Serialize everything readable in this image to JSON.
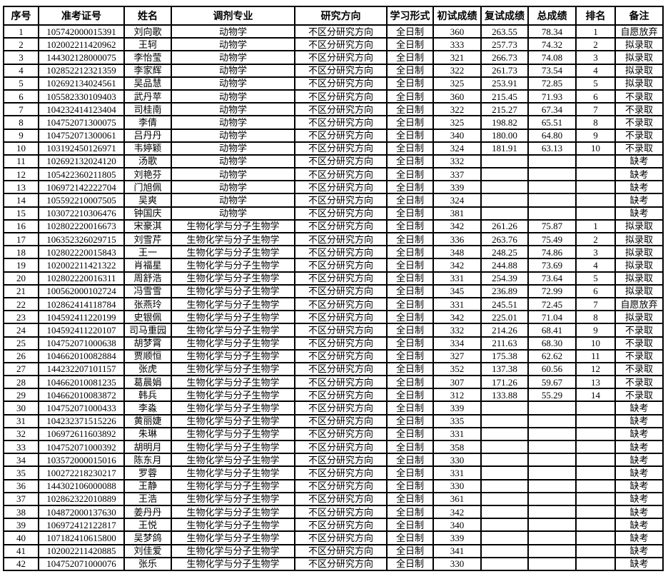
{
  "headers": [
    "序号",
    "准考证号",
    "姓名",
    "调剂专业",
    "研究方向",
    "学习形式",
    "初试成绩",
    "复试成绩",
    "总成绩",
    "排名",
    "备注"
  ],
  "rows": [
    [
      "1",
      "105742000015391",
      "刘向歌",
      "动物学",
      "不区分研究方向",
      "全日制",
      "360",
      "263.55",
      "78.34",
      "1",
      "自愿放弃"
    ],
    [
      "2",
      "102002211420962",
      "王轲",
      "动物学",
      "不区分研究方向",
      "全日制",
      "333",
      "257.73",
      "74.32",
      "2",
      "拟录取"
    ],
    [
      "3",
      "144302128000075",
      "李怡莹",
      "动物学",
      "不区分研究方向",
      "全日制",
      "321",
      "266.73",
      "74.08",
      "3",
      "拟录取"
    ],
    [
      "4",
      "102852212321359",
      "李家辉",
      "动物学",
      "不区分研究方向",
      "全日制",
      "322",
      "261.73",
      "73.54",
      "4",
      "拟录取"
    ],
    [
      "5",
      "102692134024561",
      "吴品慧",
      "动物学",
      "不区分研究方向",
      "全日制",
      "325",
      "253.91",
      "72.85",
      "5",
      "拟录取"
    ],
    [
      "6",
      "105582330109403",
      "武丹苹",
      "动物学",
      "不区分研究方向",
      "全日制",
      "360",
      "215.45",
      "71.93",
      "6",
      "不录取"
    ],
    [
      "7",
      "104232414123404",
      "司桂南",
      "动物学",
      "不区分研究方向",
      "全日制",
      "322",
      "215.27",
      "67.34",
      "7",
      "不录取"
    ],
    [
      "8",
      "104752071300075",
      "李倩",
      "动物学",
      "不区分研究方向",
      "全日制",
      "325",
      "198.82",
      "65.51",
      "8",
      "不录取"
    ],
    [
      "9",
      "104752071300061",
      "吕丹丹",
      "动物学",
      "不区分研究方向",
      "全日制",
      "340",
      "180.00",
      "64.80",
      "9",
      "不录取"
    ],
    [
      "10",
      "103192450126971",
      "韦婷颖",
      "动物学",
      "不区分研究方向",
      "全日制",
      "324",
      "181.91",
      "63.13",
      "10",
      "不录取"
    ],
    [
      "11",
      "102692132024120",
      "汤歌",
      "动物学",
      "不区分研究方向",
      "全日制",
      "332",
      "",
      "",
      "",
      "缺考"
    ],
    [
      "12",
      "105422360211805",
      "刘艳芬",
      "动物学",
      "不区分研究方向",
      "全日制",
      "337",
      "",
      "",
      "",
      "缺考"
    ],
    [
      "13",
      "106972142222704",
      "门旭佩",
      "动物学",
      "不区分研究方向",
      "全日制",
      "339",
      "",
      "",
      "",
      "缺考"
    ],
    [
      "14",
      "105592210007505",
      "吴爽",
      "动物学",
      "不区分研究方向",
      "全日制",
      "324",
      "",
      "",
      "",
      "缺考"
    ],
    [
      "15",
      "103072210306476",
      "钟国庆",
      "动物学",
      "不区分研究方向",
      "全日制",
      "381",
      "",
      "",
      "",
      "缺考"
    ],
    [
      "16",
      "102802220016673",
      "宋豪淇",
      "生物化学与分子生物学",
      "不区分研究方向",
      "全日制",
      "342",
      "261.26",
      "75.87",
      "1",
      "拟录取"
    ],
    [
      "17",
      "106352326029715",
      "刘雪芹",
      "生物化学与分子生物学",
      "不区分研究方向",
      "全日制",
      "336",
      "263.76",
      "75.49",
      "2",
      "拟录取"
    ],
    [
      "18",
      "102802220015843",
      "王一",
      "生物化学与分子生物学",
      "不区分研究方向",
      "全日制",
      "348",
      "248.25",
      "74.86",
      "3",
      "拟录取"
    ],
    [
      "19",
      "102002211421322",
      "肖福星",
      "生物化学与分子生物学",
      "不区分研究方向",
      "全日制",
      "342",
      "244.88",
      "73.69",
      "4",
      "拟录取"
    ],
    [
      "20",
      "102802220016311",
      "周舒浩",
      "生物化学与分子生物学",
      "不区分研究方向",
      "全日制",
      "331",
      "254.39",
      "73.64",
      "5",
      "拟录取"
    ],
    [
      "21",
      "100562000102724",
      "冯雪雪",
      "生物化学与分子生物学",
      "不区分研究方向",
      "全日制",
      "345",
      "236.89",
      "72.99",
      "6",
      "拟录取"
    ],
    [
      "22",
      "102862414118784",
      "张燕玲",
      "生物化学与分子生物学",
      "不区分研究方向",
      "全日制",
      "331",
      "245.51",
      "72.45",
      "7",
      "自愿放弃"
    ],
    [
      "23",
      "104592411220199",
      "史银佩",
      "生物化学与分子生物学",
      "不区分研究方向",
      "全日制",
      "342",
      "225.01",
      "71.04",
      "8",
      "拟录取"
    ],
    [
      "24",
      "104592411220107",
      "司马重园",
      "生物化学与分子生物学",
      "不区分研究方向",
      "全日制",
      "332",
      "214.26",
      "68.41",
      "9",
      "不录取"
    ],
    [
      "25",
      "104752071000638",
      "胡梦霄",
      "生物化学与分子生物学",
      "不区分研究方向",
      "全日制",
      "334",
      "211.63",
      "68.30",
      "10",
      "不录取"
    ],
    [
      "26",
      "104662010082884",
      "贾顺恒",
      "生物化学与分子生物学",
      "不区分研究方向",
      "全日制",
      "327",
      "175.38",
      "62.62",
      "11",
      "不录取"
    ],
    [
      "27",
      "144232207101157",
      "张虎",
      "生物化学与分子生物学",
      "不区分研究方向",
      "全日制",
      "352",
      "137.38",
      "60.56",
      "12",
      "不录取"
    ],
    [
      "28",
      "104662010081235",
      "葛晨娟",
      "生物化学与分子生物学",
      "不区分研究方向",
      "全日制",
      "307",
      "171.26",
      "59.67",
      "13",
      "不录取"
    ],
    [
      "29",
      "104662010083872",
      "韩兵",
      "生物化学与分子生物学",
      "不区分研究方向",
      "全日制",
      "312",
      "133.88",
      "55.29",
      "14",
      "不录取"
    ],
    [
      "30",
      "104752071000433",
      "李淼",
      "生物化学与分子生物学",
      "不区分研究方向",
      "全日制",
      "339",
      "",
      "",
      "",
      "缺考"
    ],
    [
      "31",
      "104232371515226",
      "黄丽婕",
      "生物化学与分子生物学",
      "不区分研究方向",
      "全日制",
      "335",
      "",
      "",
      "",
      "缺考"
    ],
    [
      "32",
      "106972611603892",
      "朱琳",
      "生物化学与分子生物学",
      "不区分研究方向",
      "全日制",
      "331",
      "",
      "",
      "",
      "缺考"
    ],
    [
      "33",
      "104752071000392",
      "胡明月",
      "生物化学与分子生物学",
      "不区分研究方向",
      "全日制",
      "358",
      "",
      "",
      "",
      "缺考"
    ],
    [
      "34",
      "103572000015016",
      "陈东月",
      "生物化学与分子生物学",
      "不区分研究方向",
      "全日制",
      "330",
      "",
      "",
      "",
      "缺考"
    ],
    [
      "35",
      "100272218230217",
      "罗蓉",
      "生物化学与分子生物学",
      "不区分研究方向",
      "全日制",
      "331",
      "",
      "",
      "",
      "缺考"
    ],
    [
      "36",
      "144302106000088",
      "王静",
      "生物化学与分子生物学",
      "不区分研究方向",
      "全日制",
      "330",
      "",
      "",
      "",
      "缺考"
    ],
    [
      "37",
      "102862322010889",
      "王浩",
      "生物化学与分子生物学",
      "不区分研究方向",
      "全日制",
      "361",
      "",
      "",
      "",
      "缺考"
    ],
    [
      "38",
      "104872000137630",
      "姜丹丹",
      "生物化学与分子生物学",
      "不区分研究方向",
      "全日制",
      "342",
      "",
      "",
      "",
      "缺考"
    ],
    [
      "39",
      "106972412122817",
      "王悦",
      "生物化学与分子生物学",
      "不区分研究方向",
      "全日制",
      "340",
      "",
      "",
      "",
      "缺考"
    ],
    [
      "40",
      "107182410615800",
      "吴梦鸽",
      "生物化学与分子生物学",
      "不区分研究方向",
      "全日制",
      "339",
      "",
      "",
      "",
      "缺考"
    ],
    [
      "41",
      "102002211420885",
      "刘佳爱",
      "生物化学与分子生物学",
      "不区分研究方向",
      "全日制",
      "341",
      "",
      "",
      "",
      "缺考"
    ],
    [
      "42",
      "104752071000076",
      "张乐",
      "生物化学与分子生物学",
      "不区分研究方向",
      "全日制",
      "330",
      "",
      "",
      "",
      "缺考"
    ]
  ]
}
